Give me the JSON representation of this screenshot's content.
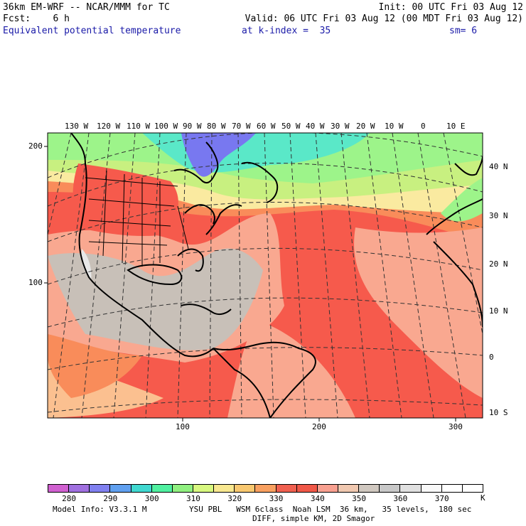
{
  "header": {
    "model_line": "36km EM-WRF -- NCAR/MMM for TC",
    "init_line": "Init: 00 UTC Fri 03 Aug 12",
    "fcst_line": "Fcst:    6 h",
    "valid_line": "Valid: 06 UTC Fri 03 Aug 12 (00 MDT Fri 03 Aug 12)",
    "field_name": "Equivalent potential temperature",
    "level_label": "at k-index =  35",
    "smoothing": "sm= 6"
  },
  "map": {
    "top_lon_labels": [
      "130 W",
      "120 W",
      "110 W",
      "100 W",
      "90 W",
      "80 W",
      "70 W",
      "60 W",
      "50 W",
      "40 W",
      "30 W",
      "20 W",
      "10 W",
      "0",
      "10 E"
    ],
    "right_lat_labels": [
      "40 N",
      "30 N",
      "20 N",
      "10 N",
      "0",
      "10 S"
    ],
    "left_grid_labels": [
      "200",
      "100"
    ],
    "bottom_grid_labels": [
      "100",
      "200",
      "300"
    ],
    "colors": {
      "tropical_red": "#f65a4c",
      "salmon": "#f9a890",
      "gray": "#c8c0b8",
      "peach": "#fbc090",
      "orange": "#f98c5a",
      "yellow": "#faeaa0",
      "green": "#9df48a",
      "cyan": "#5ae8c8",
      "blue": "#7878f0"
    }
  },
  "colorbar": {
    "labels": [
      "280",
      "290",
      "300",
      "310",
      "320",
      "330",
      "340",
      "350",
      "360",
      "370"
    ],
    "unit": "K",
    "colors": [
      "#d060d0",
      "#a070e0",
      "#8080f0",
      "#60a0f0",
      "#40d8d0",
      "#50f0a0",
      "#90f080",
      "#d8f880",
      "#f8e890",
      "#f8c870",
      "#f8a060",
      "#f06050",
      "#f05848",
      "#f8a090",
      "#f0c8b0",
      "#d0c8c0",
      "#c8c8c8",
      "#e0e0e0",
      "#f8f8f8",
      "#ffffff",
      "#ffffff"
    ]
  },
  "footer": {
    "model_info": "Model Info: V3.3.1 M",
    "physics": "YSU PBL   WSM 6class  Noah LSM  36 km,   35 levels,  180 sec",
    "diff": "DIFF, simple KM, 2D Smagor"
  }
}
